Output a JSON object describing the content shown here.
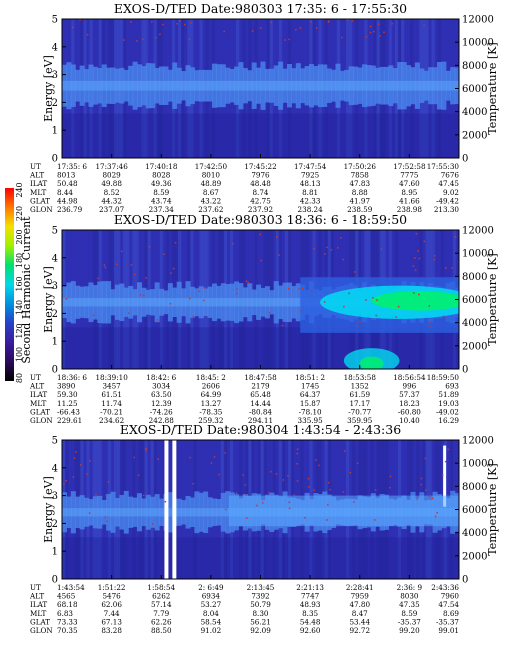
{
  "colors": {
    "panel_base": "#3030b4",
    "band_light": "#4c8cf0",
    "band_dark": "#1e1e96",
    "cyan": "#00e4f4",
    "green": "#00f070",
    "dots": "#c03838"
  },
  "colorbar": {
    "label": "Second Harmonic Current",
    "ticks": [
      "240",
      "220",
      "200",
      "180",
      "160",
      "140",
      "120",
      "100",
      "80"
    ],
    "stops": [
      "#ff0000",
      "#ff7800",
      "#f4e000",
      "#a0f000",
      "#00e070",
      "#00d8e8",
      "#0090e0",
      "#2840c8",
      "#3a1c9c",
      "#2a0a5a",
      "#000000"
    ]
  },
  "chart_data": [
    {
      "type": "heatmap",
      "title": "EXOS-D/TED   Date:980303  17:35: 6 - 17:55:30",
      "ylabel": "Energy [eV]",
      "y2label": "Temperature [K]",
      "ylim": [
        0,
        5
      ],
      "y_ticks": [
        "0",
        "1",
        "2",
        "3",
        "4",
        "5"
      ],
      "y2lim": [
        0,
        12000
      ],
      "y2_ticks": [
        "0",
        "2000",
        "4000",
        "6000",
        "8000",
        "10000",
        "12000"
      ],
      "band": {
        "center_ev": 2.6,
        "half_width_ev": 0.7
      },
      "orbit": {
        "labels": [
          "UT",
          "ALT",
          "ILAT",
          "MLT",
          "GLAT",
          "GLON"
        ],
        "columns": [
          [
            "17:35: 6",
            "8013",
            "50.48",
            "8.44",
            "44.98",
            "236.79"
          ],
          [
            "17:37:46",
            "8029",
            "49.88",
            "8.52",
            "44.32",
            "237.07"
          ],
          [
            "17:40:18",
            "8028",
            "49.36",
            "8.59",
            "43.74",
            "237.34"
          ],
          [
            "17:42:50",
            "8010",
            "48.89",
            "8.67",
            "43.22",
            "237.62"
          ],
          [
            "17:45:22",
            "7976",
            "48.48",
            "8.74",
            "42.75",
            "237.92"
          ],
          [
            "17:47:54",
            "7925",
            "48.13",
            "8.81",
            "42.33",
            "238.24"
          ],
          [
            "17:50:26",
            "7858",
            "47.83",
            "8.88",
            "41.97",
            "238.59"
          ],
          [
            "17:52:58",
            "7775",
            "47.60",
            "8.95",
            "41.66",
            "238.98"
          ],
          [
            "17:55:30",
            "7676",
            "47.45",
            "9.02",
            "-49.42",
            "213.30"
          ]
        ]
      }
    },
    {
      "type": "heatmap",
      "title": "EXOS-D/TED   Date:980303  18:36: 6 - 18:59:50",
      "ylabel": "Energy [eV]",
      "y2label": "Temperature [K]",
      "ylim": [
        0,
        5
      ],
      "y_ticks": [
        "0",
        "1",
        "2",
        "3",
        "4",
        "5"
      ],
      "y2lim": [
        0,
        12000
      ],
      "y2_ticks": [
        "0",
        "2000",
        "4000",
        "6000",
        "8000",
        "10000",
        "12000"
      ],
      "band": {
        "center_ev": 2.4,
        "half_width_ev": 0.6
      },
      "orbit": {
        "labels": [
          "UT",
          "ALT",
          "ILAT",
          "MLT",
          "GLAT",
          "GLON"
        ],
        "columns": [
          [
            "18:36: 6",
            "3890",
            "59.30",
            "11.25",
            "-66.43",
            "229.61"
          ],
          [
            "18:39:10",
            "3457",
            "61.51",
            "11.74",
            "-70.21",
            "234.62"
          ],
          [
            "18:42: 6",
            "3034",
            "63.50",
            "12.39",
            "-74.26",
            "242.88"
          ],
          [
            "18:45: 2",
            "2606",
            "64.99",
            "13.27",
            "-78.35",
            "259.32"
          ],
          [
            "18:47:58",
            "2179",
            "65.48",
            "14.44",
            "-80.84",
            "294.11"
          ],
          [
            "18:51: 2",
            "1745",
            "64.37",
            "15.87",
            "-78.10",
            "335.95"
          ],
          [
            "18:53:58",
            "1352",
            "61.59",
            "17.17",
            "-70.77",
            "359.95"
          ],
          [
            "18:56:54",
            "996",
            "57.37",
            "18.23",
            "-60.80",
            "10.40"
          ],
          [
            "18:59:50",
            "693",
            "51.89",
            "19.03",
            "-49.02",
            "16.29"
          ]
        ]
      }
    },
    {
      "type": "heatmap",
      "title": "EXOS-D/TED   Date:980304  1:43:54 - 2:43:36",
      "ylabel": "Energy [eV]",
      "y2label": "Temperature [K]",
      "ylim": [
        0,
        5
      ],
      "y_ticks": [
        "0",
        "1",
        "2",
        "3",
        "4",
        "5"
      ],
      "y2lim": [
        0,
        12000
      ],
      "y2_ticks": [
        "0",
        "2000",
        "4000",
        "6000",
        "8000",
        "10000",
        "12000"
      ],
      "band": {
        "center_ev": 2.4,
        "half_width_ev": 0.6
      },
      "orbit": {
        "labels": [
          "UT",
          "ALT",
          "ILAT",
          "MLT",
          "GLAT",
          "GLON"
        ],
        "columns": [
          [
            "1:43:54",
            "4565",
            "68.18",
            "6.83",
            "73.33",
            "70.35"
          ],
          [
            "1:51:22",
            "5476",
            "62.06",
            "7.44",
            "67.13",
            "83.28"
          ],
          [
            "1:58:54",
            "6262",
            "57.14",
            "7.79",
            "62.26",
            "88.50"
          ],
          [
            "2: 6:49",
            "6934",
            "53.27",
            "8.04",
            "58.54",
            "91.02"
          ],
          [
            "2:13:45",
            "7392",
            "50.79",
            "8.30",
            "56.21",
            "92.09"
          ],
          [
            "2:21:13",
            "7747",
            "48.93",
            "8.35",
            "54.48",
            "92.60"
          ],
          [
            "2:28:41",
            "7959",
            "47.80",
            "8.47",
            "53.44",
            "92.72"
          ],
          [
            "2:36: 9",
            "8030",
            "47.35",
            "8.59",
            "-35.37",
            "99.20"
          ],
          [
            "2:43:36",
            "7960",
            "47.54",
            "8.69",
            "-35.37",
            "99.01"
          ]
        ]
      }
    }
  ]
}
